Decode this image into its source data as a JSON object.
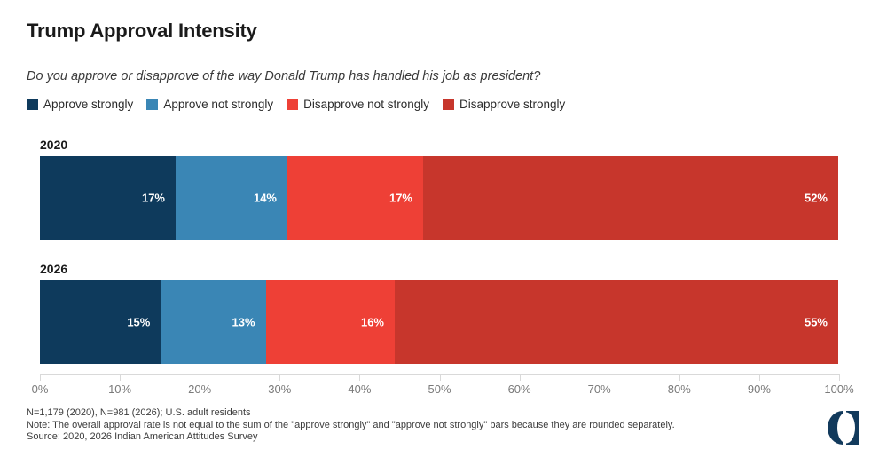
{
  "chart_data": {
    "type": "bar",
    "orientation": "horizontal-stacked",
    "title": "Trump Approval Intensity",
    "question": "Do you approve or disapprove of the way Donald Trump has handled his job as president?",
    "categories": [
      "2020",
      "2026"
    ],
    "series": [
      {
        "name": "Approve strongly",
        "color": "#0e3a5c",
        "values": [
          17,
          15
        ]
      },
      {
        "name": "Approve not strongly",
        "color": "#3a86b5",
        "values": [
          14,
          13
        ]
      },
      {
        "name": "Disapprove not strongly",
        "color": "#ee4036",
        "values": [
          17,
          16
        ]
      },
      {
        "name": "Disapprove strongly",
        "color": "#c7362c",
        "values": [
          52,
          55
        ]
      }
    ],
    "value_suffix": "%",
    "xlim": [
      0,
      100
    ],
    "x_ticks": [
      "0%",
      "10%",
      "20%",
      "30%",
      "40%",
      "50%",
      "60%",
      "70%",
      "80%",
      "90%",
      "100%"
    ],
    "legend_position": "top",
    "grid": false
  },
  "footer": {
    "notes": [
      "N=1,179 (2020), N=981 (2026); U.S. adult residents",
      "Note: The overall approval rate is not equal to the sum of the \"approve strongly\" and \"approve not strongly\" bars because they are rounded separately.",
      "Source: 2020, 2026 Indian American Attitudes Survey"
    ]
  },
  "branding": {
    "logo_color": "#123a5c"
  }
}
